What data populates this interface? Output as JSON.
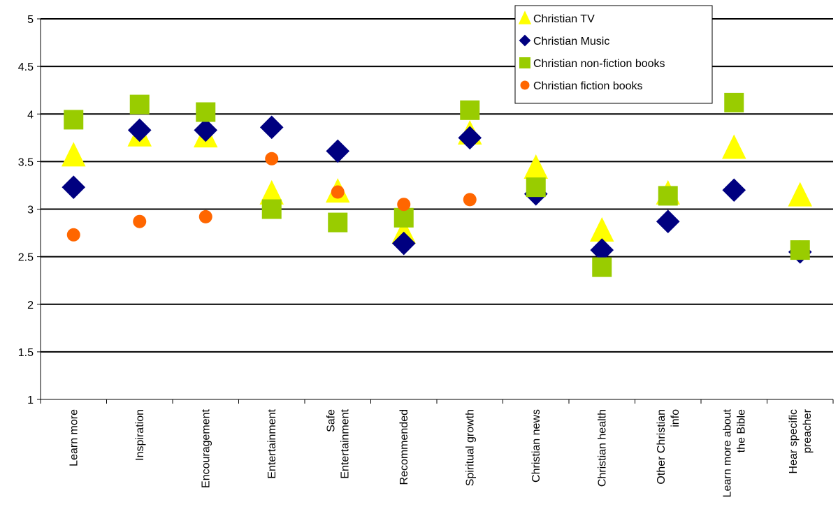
{
  "chart_data": {
    "type": "scatter",
    "title": "",
    "xlabel": "",
    "ylabel": "",
    "ylim": [
      1,
      5
    ],
    "yticks": [
      "1",
      "1.5",
      "2",
      "2.5",
      "3",
      "3.5",
      "4",
      "4.5",
      "5"
    ],
    "grid": "horizontal",
    "legend_position": "top-right",
    "categories": [
      "Learn more",
      "Inspiration",
      "Encouragement",
      "Entertainment",
      "Safe Entertainment",
      "Recommended",
      "Spiritual growth",
      "Christian news",
      "Christian health",
      "Other Christian info",
      "Learn more about the Bible",
      "Hear specific preacher"
    ],
    "category_label_lines": [
      [
        "Learn more"
      ],
      [
        "Inspiration"
      ],
      [
        "Encouragement"
      ],
      [
        "Entertainment"
      ],
      [
        "Safe",
        "Entertainment"
      ],
      [
        "Recommended"
      ],
      [
        "Spiritual growth"
      ],
      [
        "Christian news"
      ],
      [
        "Christian health"
      ],
      [
        "Other Christian",
        "info"
      ],
      [
        "Learn more about",
        "the Bible"
      ],
      [
        "Hear specific",
        "preacher"
      ]
    ],
    "series": [
      {
        "name": "Christian TV",
        "marker": "triangle",
        "color": "#ffff00",
        "values": [
          3.57,
          3.78,
          3.77,
          3.17,
          3.19,
          2.76,
          3.8,
          3.44,
          2.78,
          3.17,
          3.65,
          3.15
        ]
      },
      {
        "name": "Christian Music",
        "marker": "diamond",
        "color": "#000080",
        "values": [
          3.23,
          3.83,
          3.83,
          3.86,
          3.61,
          2.64,
          3.75,
          3.16,
          2.57,
          2.87,
          3.2,
          2.55
        ]
      },
      {
        "name": "Christian non-fiction books",
        "marker": "square",
        "color": "#99cc00",
        "values": [
          3.94,
          4.1,
          4.02,
          3.0,
          2.86,
          2.91,
          4.04,
          3.23,
          2.39,
          3.14,
          4.12,
          2.57
        ]
      },
      {
        "name": "Christian fiction books",
        "marker": "circle",
        "color": "#ff6600",
        "values": [
          2.73,
          2.87,
          2.92,
          3.53,
          3.18,
          3.05,
          3.1,
          null,
          null,
          null,
          null,
          null
        ]
      }
    ]
  }
}
